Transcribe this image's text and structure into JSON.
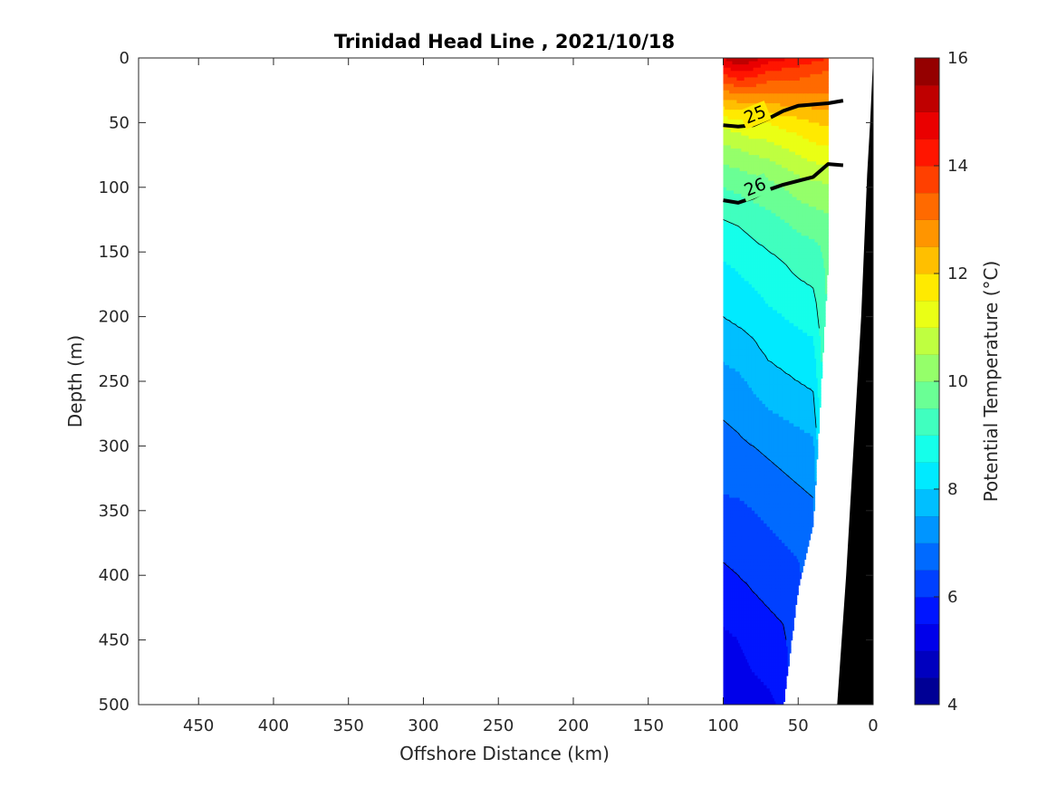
{
  "chart_data": {
    "type": "heatmap",
    "subtype": "filled-contour-section",
    "title": "Trinidad Head Line , 2021/10/18",
    "xlabel": "Offshore Distance (km)",
    "ylabel": "Depth (m)",
    "xlim": [
      490,
      0
    ],
    "ylim": [
      500,
      0
    ],
    "x_reversed": true,
    "y_reversed": true,
    "x_ticks": [
      450,
      400,
      350,
      300,
      250,
      200,
      150,
      100,
      50,
      0
    ],
    "y_ticks": [
      0,
      50,
      100,
      150,
      200,
      250,
      300,
      350,
      400,
      450,
      500
    ],
    "grid": false,
    "colorbar": {
      "label": "Potential Temperature (°C)",
      "range": [
        4,
        16
      ],
      "step": 0.5,
      "ticks": [
        4,
        6,
        8,
        10,
        12,
        14,
        16
      ],
      "colormap": "jet"
    },
    "stations_x_km": [
      100,
      90,
      80,
      70,
      60,
      50,
      40,
      30,
      20
    ],
    "bottom_depth_m": [
      500,
      500,
      500,
      500,
      500,
      408,
      360,
      155,
      0
    ],
    "temperature_profiles": [
      {
        "x": 100,
        "depths": [
          0,
          10,
          30,
          50,
          75,
          100,
          140,
          200,
          250,
          300,
          350,
          400,
          450,
          500
        ],
        "temps": [
          15.0,
          14.2,
          12.6,
          11.2,
          10.2,
          9.5,
          8.7,
          8.0,
          7.3,
          6.8,
          6.4,
          5.9,
          5.4,
          5.0
        ]
      },
      {
        "x": 90,
        "depths": [
          0,
          10,
          30,
          50,
          75,
          100,
          140,
          200,
          250,
          300,
          350,
          400,
          450,
          500
        ],
        "temps": [
          15.6,
          14.6,
          12.8,
          11.3,
          10.3,
          9.6,
          8.8,
          8.1,
          7.4,
          6.9,
          6.4,
          6.0,
          5.5,
          5.1
        ]
      },
      {
        "x": 80,
        "depths": [
          0,
          10,
          30,
          50,
          75,
          100,
          140,
          200,
          250,
          300,
          350,
          400,
          450,
          500
        ],
        "temps": [
          15.2,
          14.4,
          12.9,
          11.5,
          10.5,
          9.7,
          9.0,
          8.2,
          7.6,
          7.0,
          6.5,
          6.1,
          5.7,
          5.3
        ]
      },
      {
        "x": 70,
        "depths": [
          0,
          10,
          30,
          50,
          75,
          100,
          140,
          200,
          250,
          300,
          350,
          400,
          450,
          500
        ],
        "temps": [
          14.8,
          14.0,
          12.8,
          11.5,
          10.6,
          9.8,
          9.1,
          8.4,
          7.8,
          7.1,
          6.6,
          6.2,
          5.8,
          5.4
        ]
      },
      {
        "x": 60,
        "depths": [
          0,
          10,
          30,
          50,
          75,
          100,
          140,
          200,
          250,
          300,
          350,
          400,
          450,
          500
        ],
        "temps": [
          14.6,
          13.9,
          12.9,
          11.7,
          10.8,
          10.0,
          9.2,
          8.5,
          7.9,
          7.2,
          6.7,
          6.3,
          5.9,
          5.6
        ]
      },
      {
        "x": 50,
        "depths": [
          0,
          10,
          30,
          50,
          75,
          100,
          140,
          200,
          250,
          300,
          350,
          400
        ],
        "temps": [
          14.4,
          13.8,
          12.9,
          11.8,
          11.0,
          10.2,
          9.4,
          8.6,
          8.0,
          7.3,
          6.8,
          6.4
        ]
      },
      {
        "x": 40,
        "depths": [
          0,
          10,
          30,
          50,
          75,
          100,
          140,
          200,
          250,
          300,
          350
        ],
        "temps": [
          14.2,
          13.6,
          12.9,
          12.0,
          11.2,
          10.3,
          9.5,
          8.7,
          8.1,
          7.4,
          6.9
        ]
      },
      {
        "x": 30,
        "depths": [
          0,
          10,
          30,
          50,
          75,
          100,
          140
        ],
        "temps": [
          14.0,
          13.5,
          12.9,
          12.1,
          11.3,
          10.4,
          9.6
        ]
      }
    ],
    "density_contours": [
      {
        "label": "25",
        "x": [
          100,
          90,
          80,
          70,
          60,
          50,
          40,
          30,
          20
        ],
        "depth": [
          52,
          53,
          52,
          47,
          41,
          37,
          36,
          35,
          33
        ]
      },
      {
        "label": "26",
        "x": [
          100,
          90,
          80,
          70,
          60,
          50,
          40,
          30,
          20
        ],
        "depth": [
          110,
          112,
          108,
          102,
          98,
          95,
          92,
          82,
          83
        ]
      }
    ],
    "annotations": [
      "25",
      "26"
    ]
  }
}
